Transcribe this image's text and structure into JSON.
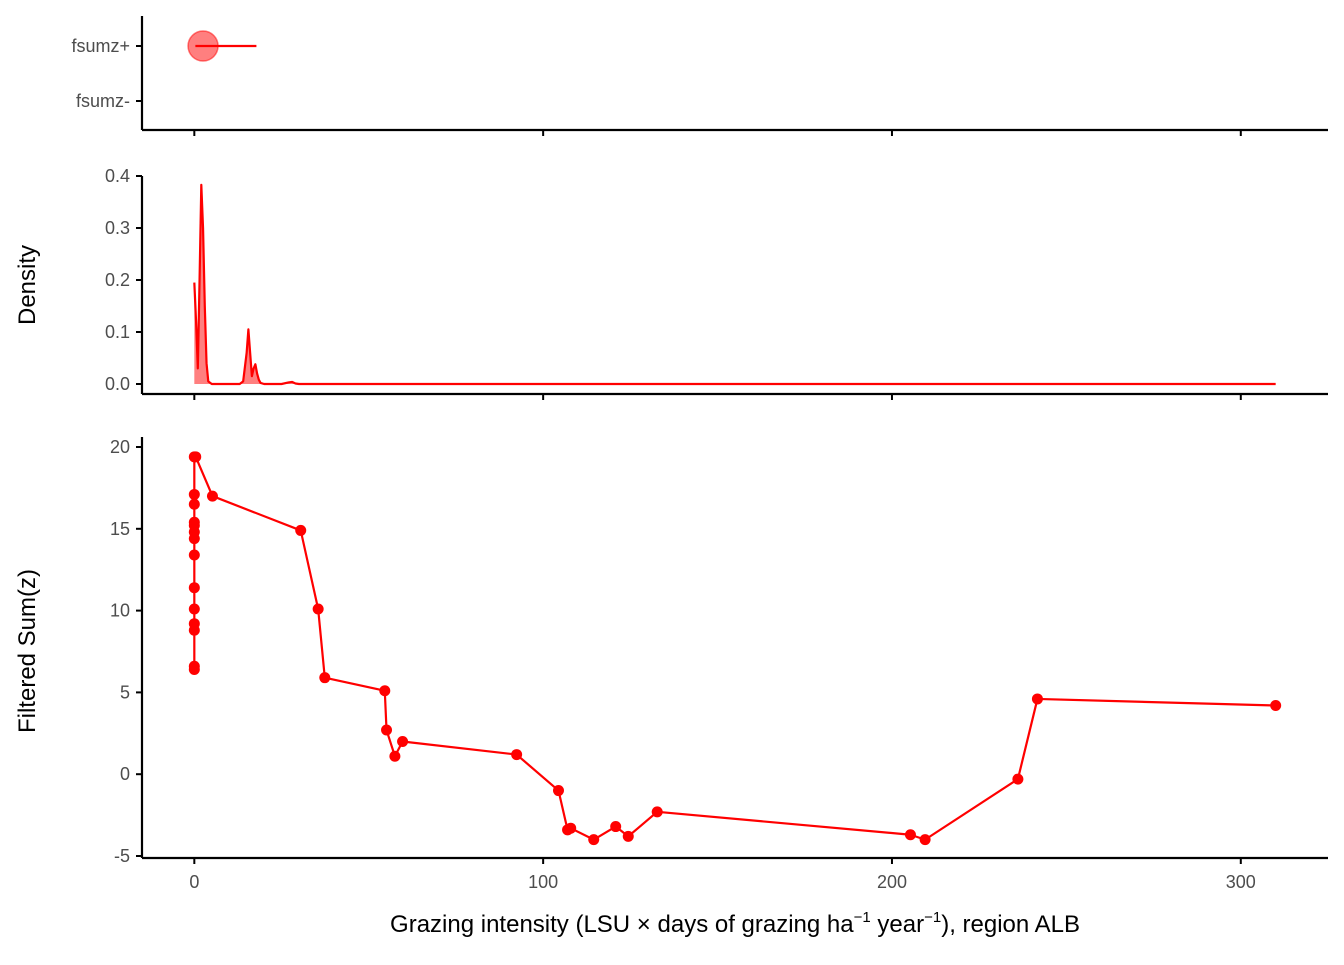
{
  "colors": {
    "series": "#ff0000",
    "series_fill": "#ff0000",
    "axis": "#000000",
    "tick_text": "#4d4d4d",
    "background": "#ffffff"
  },
  "chart_data": [
    {
      "panel": "threshold",
      "type": "scatter",
      "categories": [
        "fsumz+",
        "fsumz-"
      ],
      "point": {
        "x": 2.5,
        "category": "fsumz+"
      },
      "range": {
        "category": "fsumz+",
        "x_start": 0.3,
        "x_end": 17.8
      },
      "xlim": [
        -15,
        325
      ],
      "grid": false,
      "x_ticks": [
        0,
        100,
        200,
        300
      ],
      "x_tick_labels": [
        "",
        "",
        "",
        ""
      ]
    },
    {
      "panel": "density",
      "type": "area",
      "ylabel": "Density",
      "xlim": [
        -15,
        325
      ],
      "ylim": [
        -0.018,
        0.4
      ],
      "y_ticks": [
        0.0,
        0.1,
        0.2,
        0.3,
        0.4
      ],
      "y_tick_labels": [
        "0.0",
        "0.1",
        "0.2",
        "0.3",
        "0.4"
      ],
      "x_ticks": [
        0,
        100,
        200,
        300
      ],
      "x_tick_labels": [
        "",
        "",
        "",
        ""
      ],
      "grid": false,
      "x": [
        0,
        0.5,
        1,
        1.5,
        2,
        2.5,
        3,
        3.5,
        4,
        5,
        7,
        10,
        13,
        14,
        15,
        15.5,
        16,
        16.5,
        17,
        17.5,
        18,
        18.5,
        19,
        20,
        22,
        25,
        27,
        28,
        29,
        30,
        60,
        100,
        200,
        310
      ],
      "y": [
        0.195,
        0.12,
        0.03,
        0.2,
        0.383,
        0.3,
        0.15,
        0.04,
        0.005,
        0.0,
        0.0,
        0.0,
        0.0,
        0.005,
        0.06,
        0.105,
        0.06,
        0.015,
        0.03,
        0.038,
        0.02,
        0.008,
        0.002,
        0.0,
        0.0,
        0.0,
        0.003,
        0.004,
        0.001,
        0.0,
        0.0,
        0.0,
        0.0,
        0.0
      ]
    },
    {
      "panel": "main",
      "type": "line",
      "xlabel_parts": [
        "Grazing intensity (LSU × days of grazing ha",
        "−1",
        " year",
        "−1",
        "), region ALB"
      ],
      "ylabel": "Filtered Sum(z)",
      "xlim": [
        -15,
        325
      ],
      "ylim": [
        -5.2,
        20.6
      ],
      "x_ticks": [
        0,
        100,
        200,
        300
      ],
      "x_tick_labels": [
        "0",
        "100",
        "200",
        "300"
      ],
      "y_ticks": [
        -5,
        0,
        5,
        10,
        15,
        20
      ],
      "y_tick_labels": [
        "-5",
        "0",
        "5",
        "10",
        "15",
        "20"
      ],
      "grid": false,
      "x": [
        0,
        0,
        0,
        0,
        0,
        0,
        0,
        0,
        0,
        0,
        0,
        0,
        0,
        0,
        0.4,
        5.2,
        30.5,
        35.5,
        37.4,
        54.6,
        55.1,
        57.5,
        59.7,
        92.4,
        104.4,
        107.0,
        107.9,
        114.5,
        120.8,
        124.4,
        132.7,
        205.3,
        209.5,
        236.1,
        241.7,
        310.0
      ],
      "y": [
        6.4,
        6.6,
        8.8,
        9.2,
        10.1,
        11.4,
        13.4,
        14.4,
        14.8,
        15.2,
        15.4,
        16.5,
        17.1,
        19.4,
        19.4,
        17.0,
        14.9,
        10.1,
        5.9,
        5.1,
        2.7,
        1.1,
        2.0,
        1.2,
        -1.0,
        -3.4,
        -3.3,
        -4.0,
        -3.2,
        -3.8,
        -2.3,
        -3.7,
        -4.0,
        -0.3,
        4.6,
        4.2
      ]
    }
  ]
}
